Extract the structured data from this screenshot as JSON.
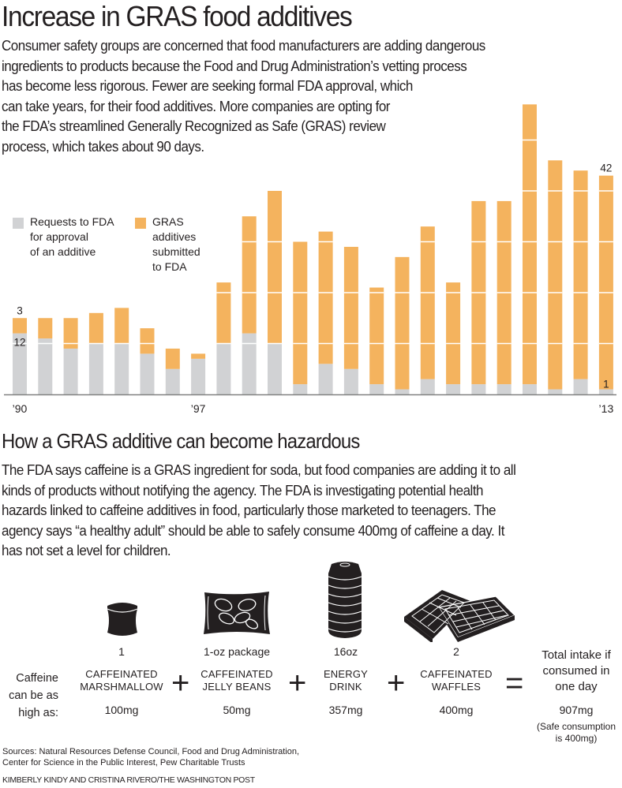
{
  "header": {
    "title": "Increase in GRAS food additives",
    "intro_lines": [
      "Consumer safety groups are concerned that food manufacturers are adding dangerous",
      "ingredients to products because the Food and Drug Administration’s vetting process",
      "has become less rigorous. Fewer are seeking formal FDA approval, which",
      "can take years, for their food additives. More companies are opting for",
      "the FDA’s streamlined Generally Recognized as Safe (GRAS) review",
      "process, which takes about 90 days."
    ]
  },
  "colors": {
    "fda_requests": "#d1d2d4",
    "gras": "#f4b35e",
    "gridline": "#ffffff",
    "axis": "#808080",
    "text": "#231f20"
  },
  "chart_data": {
    "type": "bar",
    "stacked": true,
    "title": "Increase in GRAS food additives",
    "xlabel": "",
    "ylabel": "",
    "categories": [
      "1990",
      "1991",
      "1992",
      "1993",
      "1994",
      "1995",
      "1996",
      "1997",
      "1998",
      "1999",
      "2000",
      "2001",
      "2002",
      "2003",
      "2004",
      "2005",
      "2006",
      "2007",
      "2008",
      "2009",
      "2010",
      "2011",
      "2012",
      "2013"
    ],
    "tick_labels": [
      {
        "index": 0,
        "label": "’90"
      },
      {
        "index": 7,
        "label": "’97"
      },
      {
        "index": 23,
        "label": "’13"
      }
    ],
    "series": [
      {
        "name": "Requests to FDA for approval of an additive",
        "key": "fda_requests",
        "values": [
          12,
          11,
          9,
          10,
          10,
          8,
          5,
          7,
          10,
          12,
          10,
          2,
          6,
          5,
          2,
          1,
          3,
          2,
          2,
          2,
          2,
          1,
          3,
          1
        ]
      },
      {
        "name": "GRAS additives submitted to FDA",
        "key": "gras",
        "values": [
          3,
          4,
          6,
          6,
          7,
          5,
          4,
          1,
          12,
          23,
          30,
          28,
          26,
          24,
          19,
          26,
          30,
          20,
          36,
          36,
          55,
          45,
          41,
          42
        ]
      }
    ],
    "annotations": [
      {
        "index": 0,
        "series": "gras",
        "label": "3"
      },
      {
        "index": 0,
        "series": "fda_requests",
        "label": "12"
      },
      {
        "index": 23,
        "series": "gras",
        "label": "42"
      },
      {
        "index": 23,
        "series": "fda_requests",
        "label": "1"
      }
    ],
    "legend": [
      {
        "label_lines": [
          "Requests to FDA",
          "for approval",
          "of an additive"
        ],
        "key": "fda_requests"
      },
      {
        "label_lines": [
          "GRAS",
          "additives",
          "submitted",
          "to FDA"
        ],
        "key": "gras"
      }
    ],
    "legend_position": "top-left",
    "ylim": [
      0,
      60
    ],
    "grid": true,
    "grid_step": 10
  },
  "section2": {
    "title": "How a GRAS additive can become hazardous",
    "lines": [
      "The FDA says caffeine is a GRAS ingredient for soda, but food companies are adding it to all",
      "kinds of products without notifying the agency. The FDA is investigating potential health",
      "hazards linked to caffeine additives in food, particularly those marketed to teenagers. The",
      "agency says “a healthy adult” should be able to safely consume 400mg of caffeine a day. It",
      "has not set a level for children."
    ]
  },
  "caffeine": {
    "row_label_lines": [
      "Caffeine",
      "can be as",
      "high as:"
    ],
    "items": [
      {
        "icon": "marshmallow-icon",
        "quantity": "1",
        "name_lines": [
          "CAFFEINATED",
          "MARSHMALLOW"
        ],
        "amount": "100mg"
      },
      {
        "icon": "jelly-bean-package-icon",
        "quantity": "1-oz package",
        "name_lines": [
          "CAFFEINATED",
          "JELLY BEANS"
        ],
        "amount": "50mg"
      },
      {
        "icon": "energy-drink-can-icon",
        "quantity": "16oz",
        "name_lines": [
          "ENERGY",
          "DRINK"
        ],
        "amount": "357mg"
      },
      {
        "icon": "waffles-icon",
        "quantity": "2",
        "name_lines": [
          "CAFFEINATED",
          "WAFFLES"
        ],
        "amount": "400mg"
      }
    ],
    "plus_symbol": "+",
    "equals_symbol": "=",
    "total": {
      "label_lines": [
        "Total intake if",
        "consumed in",
        "one day"
      ],
      "amount": "907mg",
      "note_lines": [
        "(Safe consumption",
        "is 400mg)"
      ]
    }
  },
  "footer": {
    "sources_lines": [
      "Sources: Natural Resources Defense Council, Food and Drug Administration,",
      "Center for Science in the Public Interest, Pew Charitable Trusts"
    ],
    "credit": "KIMBERLY KINDY AND CRISTINA RIVERO/THE WASHINGTON POST"
  }
}
